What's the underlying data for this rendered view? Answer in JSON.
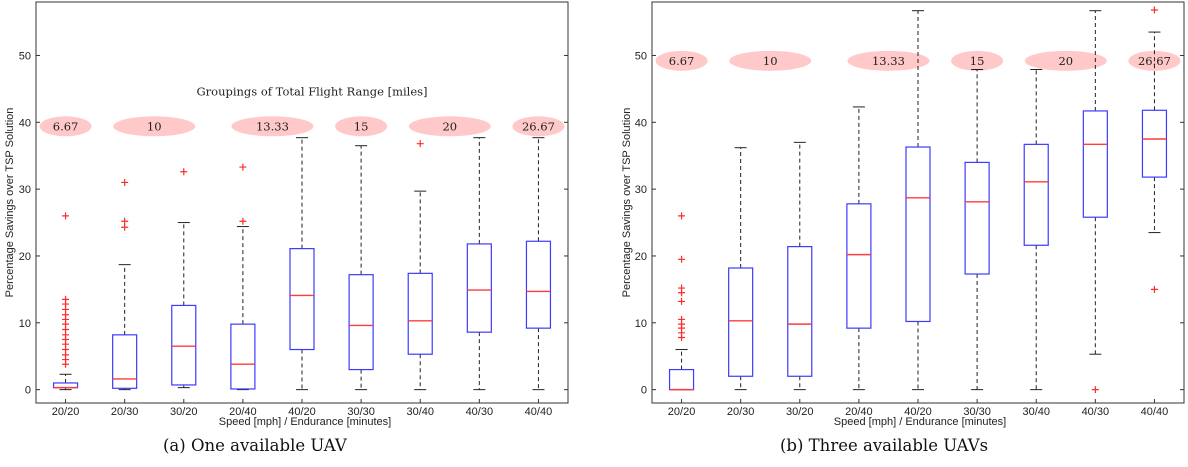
{
  "figure": {
    "captions": [
      "(a) One available UAV",
      "(b) Three available UAVs"
    ]
  },
  "colors": {
    "box": "#3b3bff",
    "median": "#ff3b3b",
    "outlier": "#ff2a2a",
    "whisker": "#222222",
    "group_ellipse": "#ffc9c9",
    "axis": "#333333"
  },
  "chart_data": [
    {
      "type": "box",
      "title": "",
      "xlabel": "Speed [mph] / Endurance [minutes]",
      "ylabel": "Percentage Savings over TSP Solution",
      "ylim": [
        -2,
        58
      ],
      "yticks": [
        0,
        10,
        20,
        30,
        40,
        50
      ],
      "grid": false,
      "categories": [
        "20/20",
        "20/30",
        "30/20",
        "20/40",
        "40/20",
        "30/30",
        "30/40",
        "40/30",
        "40/40"
      ],
      "boxes": [
        {
          "min": 0,
          "q1": 0.3,
          "median": 0.3,
          "q3": 1.0,
          "max": 2.3,
          "outliers": [
            26,
            13.5,
            12.8,
            12,
            11.2,
            10.5,
            9.8,
            9,
            8.2,
            7.5,
            6.8,
            6,
            5.2,
            4.5,
            3.8
          ]
        },
        {
          "min": 0,
          "q1": 0.2,
          "median": 1.6,
          "q3": 8.2,
          "max": 18.7,
          "outliers": [
            31,
            25.2,
            24.3
          ]
        },
        {
          "min": 0.3,
          "q1": 0.7,
          "median": 6.5,
          "q3": 12.6,
          "max": 25,
          "outliers": [
            32.6
          ]
        },
        {
          "min": 0,
          "q1": 0.1,
          "median": 3.8,
          "q3": 9.8,
          "max": 24.4,
          "outliers": [
            33.3,
            25.2
          ]
        },
        {
          "min": 0,
          "q1": 6,
          "median": 14.1,
          "q3": 21.1,
          "max": 37.7,
          "outliers": []
        },
        {
          "min": 0,
          "q1": 3,
          "median": 9.6,
          "q3": 17.2,
          "max": 36.5,
          "outliers": []
        },
        {
          "min": 0,
          "q1": 5.3,
          "median": 10.3,
          "q3": 17.4,
          "max": 29.7,
          "outliers": [
            36.8
          ]
        },
        {
          "min": 0,
          "q1": 8.6,
          "median": 14.9,
          "q3": 21.8,
          "max": 37.7,
          "outliers": []
        },
        {
          "min": 0,
          "q1": 9.2,
          "median": 14.7,
          "q3": 22.2,
          "max": 37.7,
          "outliers": []
        }
      ],
      "annotations": {
        "title": "Groupings of Total Flight Range [miles]",
        "groups": [
          {
            "label": "6.67",
            "span": [
              1,
              1
            ]
          },
          {
            "label": "10",
            "span": [
              2,
              3
            ]
          },
          {
            "label": "13.33",
            "span": [
              4,
              5
            ]
          },
          {
            "label": "15",
            "span": [
              6,
              6
            ]
          },
          {
            "label": "20",
            "span": [
              7,
              8
            ]
          },
          {
            "label": "26.67",
            "span": [
              9,
              9
            ]
          }
        ],
        "y": 39.4
      }
    },
    {
      "type": "box",
      "title": "",
      "xlabel": "Speed [mph] / Endurance [minutes]",
      "ylabel": "Percentage Savings over TSP Solution",
      "ylim": [
        -2,
        58
      ],
      "yticks": [
        0,
        10,
        20,
        30,
        40,
        50
      ],
      "grid": false,
      "categories": [
        "20/20",
        "20/30",
        "30/20",
        "20/40",
        "40/20",
        "30/30",
        "30/40",
        "40/30",
        "40/40"
      ],
      "boxes": [
        {
          "min": 0,
          "q1": 0,
          "median": 0,
          "q3": 3,
          "max": 6,
          "outliers": [
            26,
            19.5,
            15.2,
            14.5,
            13.2,
            10.5,
            9.8,
            9.2,
            8.5,
            7.8
          ]
        },
        {
          "min": 0,
          "q1": 2,
          "median": 10.3,
          "q3": 18.2,
          "max": 36.2,
          "outliers": []
        },
        {
          "min": 0,
          "q1": 2,
          "median": 9.8,
          "q3": 21.4,
          "max": 37,
          "outliers": []
        },
        {
          "min": 0,
          "q1": 9.2,
          "median": 20.2,
          "q3": 27.8,
          "max": 42.3,
          "outliers": []
        },
        {
          "min": 0,
          "q1": 10.2,
          "median": 28.7,
          "q3": 36.3,
          "max": 56.7,
          "outliers": []
        },
        {
          "min": 0,
          "q1": 17.3,
          "median": 28.1,
          "q3": 34,
          "max": 47.9,
          "outliers": []
        },
        {
          "min": 0,
          "q1": 21.6,
          "median": 31.1,
          "q3": 36.7,
          "max": 47.9,
          "outliers": []
        },
        {
          "min": 5.3,
          "q1": 25.8,
          "median": 36.7,
          "q3": 41.7,
          "max": 56.7,
          "outliers": [
            0
          ]
        },
        {
          "min": 23.5,
          "q1": 31.8,
          "median": 37.5,
          "q3": 41.8,
          "max": 53.5,
          "outliers": [
            56.8,
            15
          ]
        }
      ],
      "annotations": {
        "title": "",
        "groups": [
          {
            "label": "6.67",
            "span": [
              1,
              1
            ]
          },
          {
            "label": "10",
            "span": [
              2,
              3
            ]
          },
          {
            "label": "13.33",
            "span": [
              4,
              5
            ]
          },
          {
            "label": "15",
            "span": [
              6,
              6
            ]
          },
          {
            "label": "20",
            "span": [
              7,
              8
            ]
          },
          {
            "label": "26.67",
            "span": [
              9,
              9
            ]
          }
        ],
        "y": 49.2
      }
    }
  ]
}
